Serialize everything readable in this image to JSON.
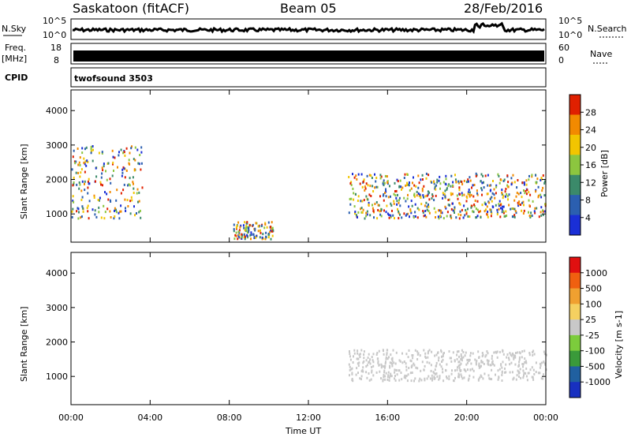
{
  "header": {
    "station": "Saskatoon (fitACF)",
    "beam": "Beam 05",
    "date": "28/Feb/2016"
  },
  "status_panels": {
    "nsky_label": "N.Sky",
    "nsky_ticks": [
      "10^5",
      "10^0"
    ],
    "nsearch_label": "N.Search",
    "freq_label_1": "Freq.",
    "freq_label_2": "[MHz]",
    "freq_ticks": [
      "18",
      "8"
    ],
    "nave_label": "Nave",
    "nave_ticks": [
      "60",
      "0"
    ],
    "cpid_label": "CPID",
    "cpid_value": "twofsound 3503"
  },
  "chart_data": [
    {
      "type": "heatmap",
      "panel": "power",
      "ylabel": "Slant Range [km]",
      "y_ticks": [
        1000,
        2000,
        3000,
        4000
      ],
      "ylim": [
        180,
        4600
      ],
      "colorbar_label": "Power [dB]",
      "colorbar_ticks": [
        "4",
        "8",
        "12",
        "16",
        "20",
        "24",
        "28"
      ],
      "colorbar_range": [
        0,
        30
      ],
      "colors": [
        "#1a2fd6",
        "#2b5fb0",
        "#3b8a6a",
        "#8cc63f",
        "#f2c500",
        "#f28a00",
        "#e02000"
      ],
      "regions": [
        {
          "t": [
            0.0,
            3.6
          ],
          "r": [
            900,
            3000
          ],
          "level": "mixed-high"
        },
        {
          "t": [
            8.2,
            10.2
          ],
          "r": [
            300,
            800
          ],
          "level": "high"
        },
        {
          "t": [
            14.0,
            24.0
          ],
          "r": [
            900,
            2200
          ],
          "level": "high"
        }
      ]
    },
    {
      "type": "heatmap",
      "panel": "velocity",
      "ylabel": "Slant Range [km]",
      "y_ticks": [
        1000,
        2000,
        3000,
        4000
      ],
      "ylim": [
        180,
        4600
      ],
      "colorbar_label": "Velocity [m s-1]",
      "colorbar_ticks": [
        "1000",
        "500",
        "100",
        "25",
        "-25",
        "-100",
        "-500",
        "-1000"
      ],
      "colorbar_range": [
        -1000,
        1000
      ],
      "colors": [
        "#e01010",
        "#f06010",
        "#f0a030",
        "#f5d060",
        "#c8c8c8",
        "#7ccc3c",
        "#3a9a3a",
        "#2060a0",
        "#1830c0"
      ],
      "x_ticks": [
        "00:00",
        "04:00",
        "08:00",
        "12:00",
        "16:00",
        "20:00",
        "00:00"
      ],
      "xlabel": "Time UT"
    }
  ]
}
